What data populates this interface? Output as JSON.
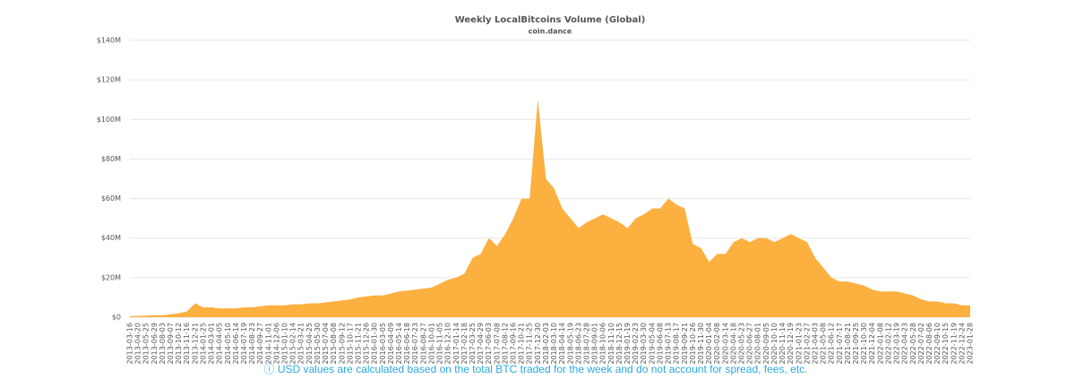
{
  "chart_data": {
    "type": "area",
    "title": "Weekly LocalBitcoins Volume (Global)",
    "subtitle": "coin.dance",
    "note": "ⓘ USD values are calculated based on the total BTC traded for the week and do not account for spread, fees, etc.",
    "color": "#fbb040",
    "grid": true,
    "categories": [
      "2013-03-16",
      "2013-04-20",
      "2013-05-25",
      "2013-06-29",
      "2013-08-03",
      "2013-09-07",
      "2013-10-12",
      "2013-11-16",
      "2013-12-21",
      "2014-01-25",
      "2014-03-01",
      "2014-04-05",
      "2014-05-10",
      "2014-06-14",
      "2014-07-19",
      "2014-08-23",
      "2014-09-27",
      "2014-11-01",
      "2014-12-06",
      "2015-01-10",
      "2015-02-14",
      "2015-03-21",
      "2015-04-25",
      "2015-05-30",
      "2015-07-04",
      "2015-08-08",
      "2015-09-12",
      "2015-10-17",
      "2015-11-21",
      "2015-12-26",
      "2016-01-30",
      "2016-03-05",
      "2016-04-09",
      "2016-05-14",
      "2016-06-18",
      "2016-07-23",
      "2016-08-27",
      "2016-10-01",
      "2016-11-05",
      "2016-12-10",
      "2017-01-14",
      "2017-02-18",
      "2017-03-25",
      "2017-04-29",
      "2017-06-03",
      "2017-07-08",
      "2017-08-12",
      "2017-09-16",
      "2017-10-21",
      "2017-11-25",
      "2017-12-30",
      "2018-02-03",
      "2018-03-10",
      "2018-04-14",
      "2018-05-19",
      "2018-06-23",
      "2018-07-28",
      "2018-09-01",
      "2018-10-06",
      "2018-11-10",
      "2018-12-15",
      "2019-01-19",
      "2019-02-23",
      "2019-03-30",
      "2019-05-04",
      "2019-06-08",
      "2019-07-13",
      "2019-08-17",
      "2019-09-21",
      "2019-10-26",
      "2019-11-30",
      "2020-01-04",
      "2020-02-08",
      "2020-03-14",
      "2020-04-18",
      "2020-05-23",
      "2020-06-27",
      "2020-08-01",
      "2020-09-05",
      "2020-10-10",
      "2020-11-14",
      "2020-12-19",
      "2021-01-23",
      "2021-02-27",
      "2021-04-03",
      "2021-05-08",
      "2021-06-12",
      "2021-07-17",
      "2021-08-21",
      "2021-09-25",
      "2021-10-30",
      "2021-12-04",
      "2022-01-08",
      "2022-02-12",
      "2022-03-19",
      "2022-04-23",
      "2022-05-28",
      "2022-07-02",
      "2022-08-06",
      "2022-09-10",
      "2022-10-15",
      "2022-11-19",
      "2022-12-24",
      "2023-01-28"
    ],
    "values": [
      0.5,
      0.7,
      0.8,
      1,
      1,
      1.5,
      2,
      3,
      7,
      5,
      5,
      4.5,
      4.5,
      4.5,
      5,
      5,
      5.5,
      6,
      6,
      6,
      6.5,
      6.5,
      7,
      7,
      7.5,
      8,
      8.5,
      9,
      10,
      10.5,
      11,
      11,
      12,
      13,
      13.5,
      14,
      14.5,
      15,
      17,
      19,
      20,
      22,
      30,
      32,
      40,
      36,
      42,
      50,
      60,
      60,
      110,
      70,
      65,
      55,
      50,
      45,
      48,
      50,
      52,
      50,
      48,
      45,
      50,
      52,
      55,
      55,
      60,
      57,
      55,
      37,
      35,
      28,
      32,
      32,
      38,
      40,
      38,
      40,
      40,
      38,
      40,
      42,
      40,
      38,
      30,
      25,
      20,
      18,
      18,
      17,
      16,
      14,
      13,
      13,
      13,
      12,
      11,
      9,
      8,
      8,
      7,
      7,
      6,
      6
    ],
    "ylim": [
      0,
      140
    ],
    "yticks": [
      {
        "value": 0,
        "label": "$0"
      },
      {
        "value": 20,
        "label": "$20M"
      },
      {
        "value": 40,
        "label": "$40M"
      },
      {
        "value": 60,
        "label": "$60M"
      },
      {
        "value": 80,
        "label": "$80M"
      },
      {
        "value": 100,
        "label": "$100M"
      },
      {
        "value": 120,
        "label": "$120M"
      },
      {
        "value": 140,
        "label": "$140M"
      }
    ]
  }
}
